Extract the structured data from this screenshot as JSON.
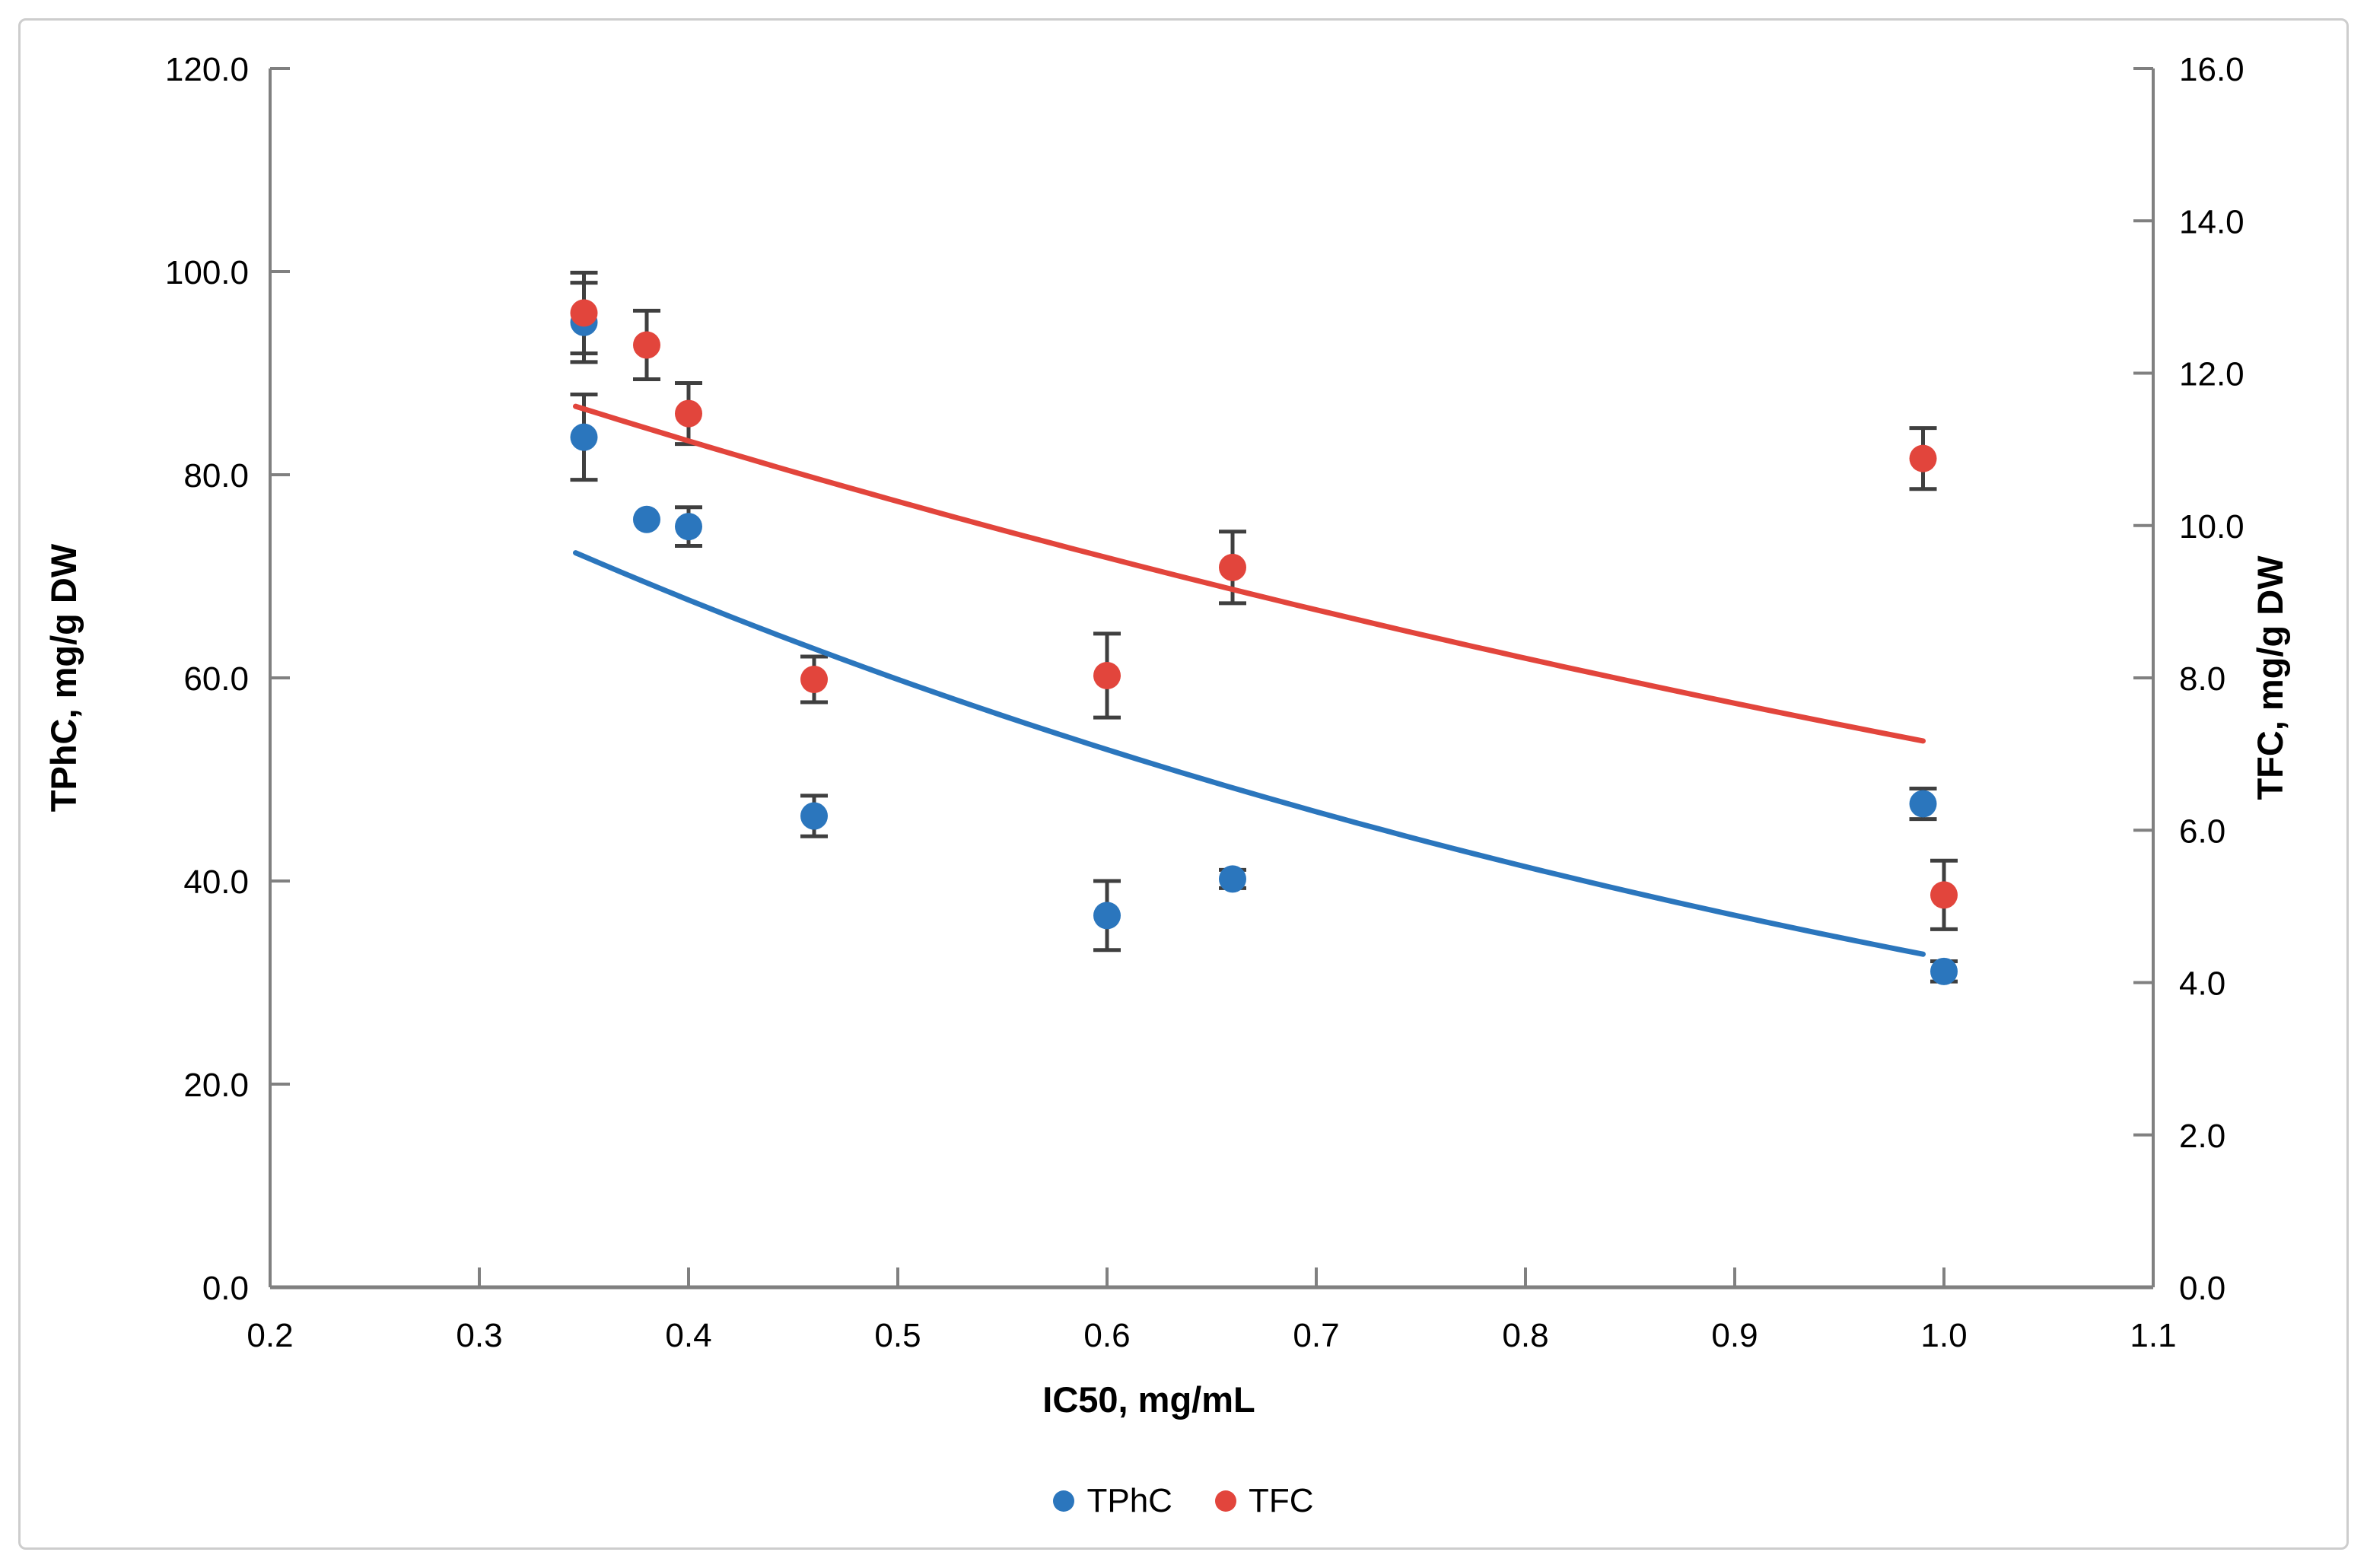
{
  "figure": {
    "background": "#ffffff",
    "border_color": "#cdcdcd"
  },
  "axes": {
    "x": {
      "title": "IC50, mg/mL",
      "min": 0.2,
      "max": 1.1,
      "tick_step": 0.1,
      "tick_labels": [
        "0.2",
        "0.3",
        "0.4",
        "0.5",
        "0.6",
        "0.7",
        "0.8",
        "0.9",
        "1.0",
        "1.1"
      ]
    },
    "y_left": {
      "title": "TPhC, mg/g DW",
      "min": 0,
      "max": 120,
      "tick_step": 20,
      "tick_labels": [
        "0.0",
        "20.0",
        "40.0",
        "60.0",
        "80.0",
        "100.0",
        "120.0"
      ]
    },
    "y_right": {
      "title": "TFC, mg/g DW",
      "min": 0,
      "max": 16,
      "tick_step": 2,
      "tick_labels": [
        "0.0",
        "2.0",
        "4.0",
        "6.0",
        "8.0",
        "10.0",
        "12.0",
        "14.0",
        "16.0"
      ]
    }
  },
  "legend": [
    {
      "label": "TPhC",
      "color": "#2b76bd"
    },
    {
      "label": "TFC",
      "color": "#e2453c"
    }
  ],
  "chart_data": {
    "type": "scatter",
    "xlabel": "IC50, mg/mL",
    "ylabel_left": "TPhC, mg/g DW",
    "ylabel_right": "TFC, mg/g DW",
    "x_range": [
      0.2,
      1.1
    ],
    "y_left_range": [
      0,
      120
    ],
    "y_right_range": [
      0,
      16
    ],
    "grid": false,
    "legend_position": "bottom-center",
    "error_bar_color": "#3f3f3f",
    "axis_color": "#808080",
    "series": [
      {
        "name": "TPhC",
        "axis": "left",
        "color": "#2b76bd",
        "points": [
          {
            "x": 0.35,
            "y": 95.0,
            "err": 3.9
          },
          {
            "x": 0.35,
            "y": 83.7,
            "err": 4.2
          },
          {
            "x": 0.38,
            "y": 75.6,
            "err": 0.0
          },
          {
            "x": 0.4,
            "y": 74.9,
            "err": 1.9
          },
          {
            "x": 0.46,
            "y": 46.4,
            "err": 2.0
          },
          {
            "x": 0.6,
            "y": 36.6,
            "err": 3.4
          },
          {
            "x": 0.66,
            "y": 40.2,
            "err": 0.9
          },
          {
            "x": 0.99,
            "y": 47.6,
            "err": 1.5
          },
          {
            "x": 1.0,
            "y": 31.1,
            "err": 1.0
          }
        ]
      },
      {
        "name": "TFC",
        "axis": "right",
        "color": "#e2453c",
        "points": [
          {
            "x": 0.35,
            "y": 12.79,
            "err": 0.53
          },
          {
            "x": 0.38,
            "y": 12.37,
            "err": 0.45
          },
          {
            "x": 0.4,
            "y": 11.47,
            "err": 0.4
          },
          {
            "x": 0.46,
            "y": 7.98,
            "err": 0.3
          },
          {
            "x": 0.6,
            "y": 8.03,
            "err": 0.55
          },
          {
            "x": 0.66,
            "y": 9.45,
            "err": 0.47
          },
          {
            "x": 0.99,
            "y": 10.88,
            "err": 0.4
          },
          {
            "x": 1.0,
            "y": 5.15,
            "err": 0.45
          }
        ]
      }
    ],
    "trendlines": [
      {
        "series": "TPhC",
        "axis": "left",
        "color": "#2b76bd",
        "model": "exponential",
        "a": 110.6,
        "k": -1.228,
        "x_start": 0.346,
        "x_end": 0.99
      },
      {
        "series": "TFC",
        "axis": "right",
        "color": "#e2453c",
        "model": "exponential",
        "a": 14.95,
        "k": -0.742,
        "x_start": 0.346,
        "x_end": 0.99
      }
    ]
  }
}
